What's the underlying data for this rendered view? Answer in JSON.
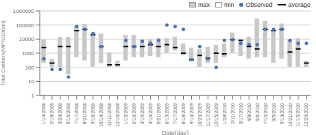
{
  "chart_data": {
    "type": "bar",
    "xlabel": "Date(day)",
    "ylabel": "Total Coliform(MPN/100ml)",
    "categories": [
      "1/14/2008",
      "2/18/2008",
      "3/20/2008",
      "5/15/2008",
      "7/17/2008",
      "8/21/2008",
      "9/16/2008",
      "10/14/2008",
      "11/11/2008",
      "12/16/2008",
      "1/15/2009",
      "2/16/2009",
      "3/19/2009",
      "4/16/2009",
      "5/21/2009",
      "6/19/2009",
      "7/17/2009",
      "8/18/2009",
      "9/14/2009",
      "10/20/2009",
      "11/17/2009",
      "12/15/2009",
      "1/28/2010",
      "2/11/2010",
      "3/17/2010",
      "4/8/2010",
      "5/6/2010",
      "7/15/2010",
      "8/9/2010",
      "9/13/2010",
      "10/21/2010",
      "11/15/2010",
      "12/20/2010"
    ],
    "series": [
      {
        "name": "max",
        "type": "bar",
        "color": "#c8c8c8",
        "values": [
          10000,
          400,
          15000,
          15000,
          100000,
          120000,
          20000,
          25000,
          1200,
          300,
          20000,
          20000,
          10000,
          10000,
          12000,
          12000,
          15000,
          5000,
          2500,
          2000,
          3000,
          4000,
          5000,
          30000,
          8000,
          15000,
          300000,
          200000,
          40000,
          130000,
          10000,
          12000,
          300
        ]
      },
      {
        "name": "min",
        "type": "bar",
        "color": "#ffffff",
        "values": [
          200,
          100,
          100,
          30,
          500,
          300,
          100,
          200,
          100,
          100,
          300,
          500,
          500,
          600,
          500,
          1000,
          1500,
          700,
          400,
          100,
          200,
          200,
          500,
          1000,
          600,
          400,
          500,
          500,
          200,
          400,
          100,
          100,
          100
        ]
      },
      {
        "name": "Observed",
        "type": "scatter",
        "marker": "circle",
        "color": "#4472c4",
        "values": [
          400,
          70,
          70,
          20,
          80000,
          50000,
          25000,
          3000,
          null,
          null,
          8000,
          3000,
          7000,
          5000,
          8000,
          100000,
          80000,
          50000,
          350,
          3000,
          400,
          100,
          8000,
          9000,
          5000,
          4000,
          4000,
          50000,
          50000,
          50000,
          8000,
          5000,
          5000
        ]
      },
      {
        "name": "average",
        "type": "scatter",
        "marker": "hline",
        "color": "#000000",
        "values": [
          2500,
          200,
          3000,
          3000,
          40000,
          50000,
          20000,
          3000,
          150,
          150,
          3000,
          3000,
          3000,
          4000,
          3000,
          4000,
          2500,
          1000,
          350,
          700,
          450,
          1000,
          900,
          9000,
          8000,
          3000,
          2000,
          50000,
          40000,
          50000,
          1200,
          2000,
          200
        ]
      }
    ],
    "log": "y",
    "ylim": [
      1,
      1000000
    ],
    "yticks": [
      1,
      10,
      100,
      1000,
      10000,
      100000,
      1000000
    ],
    "grid": true,
    "legend": "upper right"
  }
}
